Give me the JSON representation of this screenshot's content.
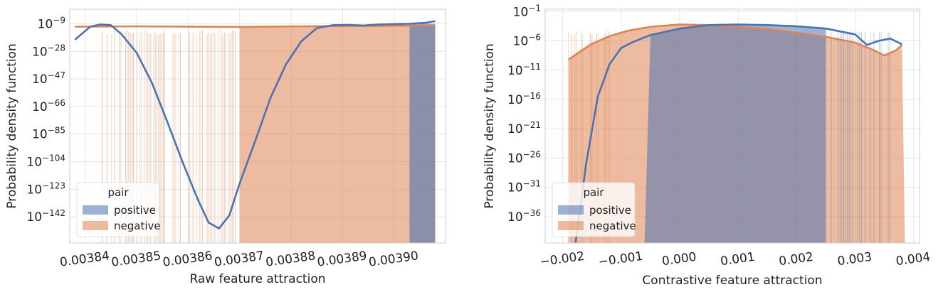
{
  "chart_data": [
    {
      "type": "area",
      "xlabel": "Raw feature attraction",
      "ylabel": "Probability density function",
      "yscale": "log",
      "x_ticks": [
        "0.00384",
        "0.00385",
        "0.00386",
        "0.00387",
        "0.00388",
        "0.00389",
        "0.00390"
      ],
      "x_tick_values": [
        0.00384,
        0.00385,
        0.00386,
        0.00387,
        0.00388,
        0.00389,
        0.0039
      ],
      "y_ticks": [
        "10−9",
        "10−28",
        "10−47",
        "10−66",
        "10−85",
        "10−104",
        "10−123",
        "10−142"
      ],
      "y_tick_exponents": [
        -9,
        -28,
        -47,
        -66,
        -85,
        -104,
        -123,
        -142
      ],
      "xlim": [
        0.003837,
        0.00391
      ],
      "ylim_exponent": [
        -160,
        1
      ],
      "grid": true,
      "legend": {
        "title": "pair",
        "placement": "lower-left",
        "entries": [
          "positive",
          "negative"
        ]
      },
      "colors": {
        "positive": "#4c72b0",
        "negative": "#dd8452"
      },
      "series": [
        {
          "name": "positive",
          "x": [
            0.003838,
            0.003841,
            0.003843,
            0.003845,
            0.003847,
            0.00385,
            0.003853,
            0.003856,
            0.003859,
            0.003862,
            0.003864,
            0.003866,
            0.003868,
            0.00387,
            0.003873,
            0.003876,
            0.003879,
            0.003882,
            0.003885,
            0.003888,
            0.003891,
            0.003894,
            0.003897,
            0.0039,
            0.003903,
            0.003906,
            0.003908
          ],
          "log10_y": [
            -20,
            -11,
            -9.5,
            -10,
            -16,
            -29,
            -50,
            -77,
            -105,
            -131,
            -146,
            -150,
            -141,
            -119,
            -90,
            -60,
            -37,
            -21,
            -12,
            -10,
            -9.8,
            -10.2,
            -9.5,
            -9.2,
            -9.0,
            -8.4,
            -7.2
          ]
        },
        {
          "name": "negative",
          "x": [
            0.003838,
            0.00385,
            0.00386,
            0.00387,
            0.00388,
            0.00389,
            0.0039,
            0.003908
          ],
          "log10_y": [
            -11,
            -10.8,
            -11,
            -11.2,
            -10.8,
            -10.6,
            -10.4,
            -10.2
          ]
        }
      ]
    },
    {
      "type": "area",
      "xlabel": "Contrastive feature attraction",
      "ylabel": "Probability density function",
      "yscale": "log",
      "x_ticks": [
        "−0.002",
        "−0.001",
        "0.000",
        "0.001",
        "0.002",
        "0.003",
        "0.004"
      ],
      "x_tick_values": [
        -0.002,
        -0.001,
        0.0,
        0.001,
        0.002,
        0.003,
        0.004
      ],
      "y_ticks": [
        "10−1",
        "10−6",
        "10−11",
        "10−16",
        "10−21",
        "10−26",
        "10−31",
        "10−36"
      ],
      "y_tick_exponents": [
        -1,
        -6,
        -11,
        -16,
        -21,
        -26,
        -31,
        -36
      ],
      "xlim": [
        -0.0023,
        0.0041
      ],
      "ylim_exponent": [
        -40.5,
        -0.6
      ],
      "grid": true,
      "legend": {
        "title": "pair",
        "placement": "lower-left",
        "entries": [
          "positive",
          "negative"
        ]
      },
      "colors": {
        "positive": "#4c72b0",
        "negative": "#dd8452"
      },
      "series": [
        {
          "name": "positive",
          "x": [
            -0.0018,
            -0.0016,
            -0.0014,
            -0.0012,
            -0.001,
            -0.0008,
            -0.0005,
            0.0,
            0.0005,
            0.001,
            0.0015,
            0.002,
            0.0025,
            0.003,
            0.0032,
            0.0034,
            0.0036,
            0.0038
          ],
          "log10_y": [
            -42,
            -27,
            -15.5,
            -10,
            -7.2,
            -6.2,
            -5.0,
            -3.9,
            -3.3,
            -3.2,
            -3.3,
            -3.5,
            -3.9,
            -4.9,
            -6.7,
            -6.0,
            -5.6,
            -6.6
          ]
        },
        {
          "name": "negative",
          "x": [
            -0.0019,
            -0.0017,
            -0.0015,
            -0.0012,
            -0.0009,
            -0.0005,
            0.0,
            0.0005,
            0.001,
            0.0015,
            0.002,
            0.0025,
            0.003,
            0.0033,
            0.0035,
            0.0037,
            0.0038
          ],
          "log10_y": [
            -9.2,
            -7.8,
            -6.5,
            -5.2,
            -4.3,
            -3.6,
            -3.2,
            -3.3,
            -3.6,
            -4.0,
            -4.6,
            -5.3,
            -6.3,
            -7.5,
            -8.5,
            -7.6,
            -6.7
          ]
        }
      ]
    }
  ]
}
